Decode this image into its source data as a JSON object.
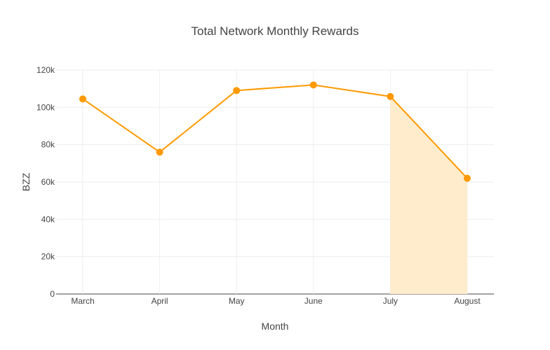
{
  "chart_data": {
    "type": "line",
    "title": "Total Network Monthly Rewards",
    "xlabel": "Month",
    "ylabel": "BZZ",
    "categories": [
      "March",
      "April",
      "May",
      "June",
      "July",
      "August"
    ],
    "series": [
      {
        "values": [
          104500,
          76000,
          109000,
          112000,
          105800,
          62000
        ]
      }
    ],
    "ylim": [
      0,
      120000
    ],
    "yticks": [
      0,
      20000,
      40000,
      60000,
      80000,
      100000,
      120000
    ],
    "ytick_labels": [
      "0",
      "20k",
      "40k",
      "60k",
      "80k",
      "100k",
      "120k"
    ],
    "highlight_area": {
      "from": "July",
      "to": "August"
    },
    "grid": true,
    "colors": {
      "line": "#ff9900",
      "highlight_fill": "#ffeccc",
      "grid": "#eeeeee"
    }
  }
}
